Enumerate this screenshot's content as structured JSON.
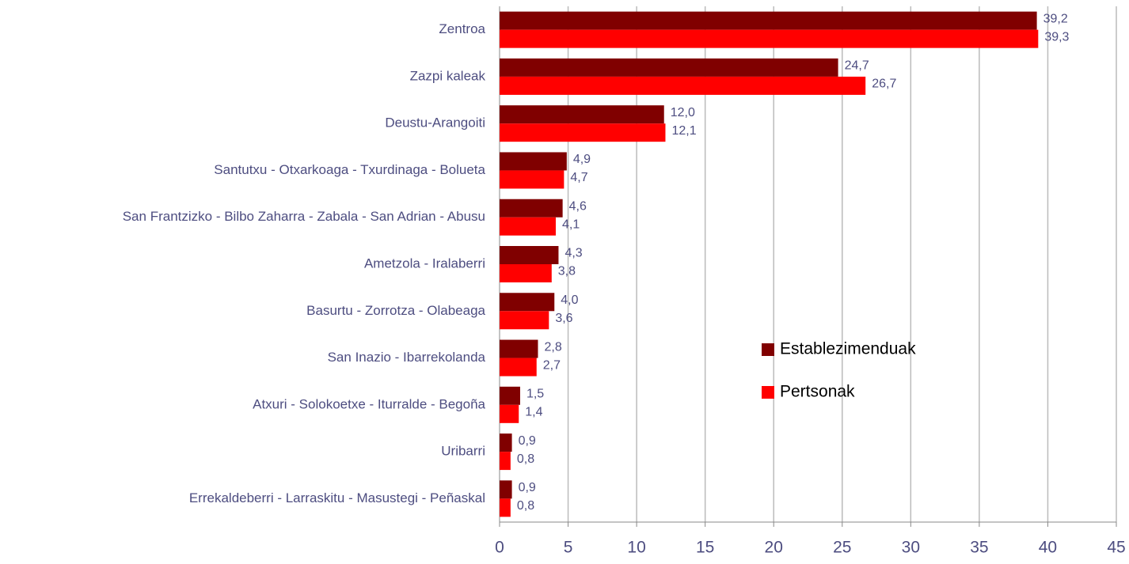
{
  "chart_data": {
    "type": "barh",
    "categories": [
      "Zentroa",
      "Zazpi kaleak",
      "Deustu-Arangoiti",
      "Santutxu - Otxarkoaga - Txurdinaga - Bolueta",
      "San Frantzizko - Bilbo Zaharra - Zabala - San Adrian - Abusu",
      "Ametzola - Iralaberri",
      "Basurtu - Zorrotza - Olabeaga",
      "San Inazio - Ibarrekolanda",
      "Atxuri - Solokoetxe - Iturralde - Begoña",
      "Uribarri",
      "Errekaldeberri - Larraskitu - Masustegi - Peñaskal"
    ],
    "series": [
      {
        "name": "Establezimenduak",
        "color": "#800000",
        "values": [
          39.2,
          24.7,
          12.0,
          4.9,
          4.6,
          4.3,
          4.0,
          2.8,
          1.5,
          0.9,
          0.9
        ],
        "value_labels": [
          "39,2",
          "24,7",
          "12,0",
          "4,9",
          "4,6",
          "4,3",
          "4,0",
          "2,8",
          "1,5",
          "0,9",
          "0,9"
        ]
      },
      {
        "name": "Pertsonak",
        "color": "#ff0000",
        "values": [
          39.3,
          26.7,
          12.1,
          4.7,
          4.1,
          3.8,
          3.6,
          2.7,
          1.4,
          0.8,
          0.8
        ],
        "value_labels": [
          "39,3",
          "26,7",
          "12,1",
          "4,7",
          "4,1",
          "3,8",
          "3,6",
          "2,7",
          "1,4",
          "0,8",
          "0,8"
        ]
      }
    ],
    "xlim": [
      0,
      45
    ],
    "xticks": [
      0,
      5,
      10,
      15,
      20,
      25,
      30,
      35,
      40,
      45
    ],
    "grid": true,
    "legend": "center-right"
  }
}
